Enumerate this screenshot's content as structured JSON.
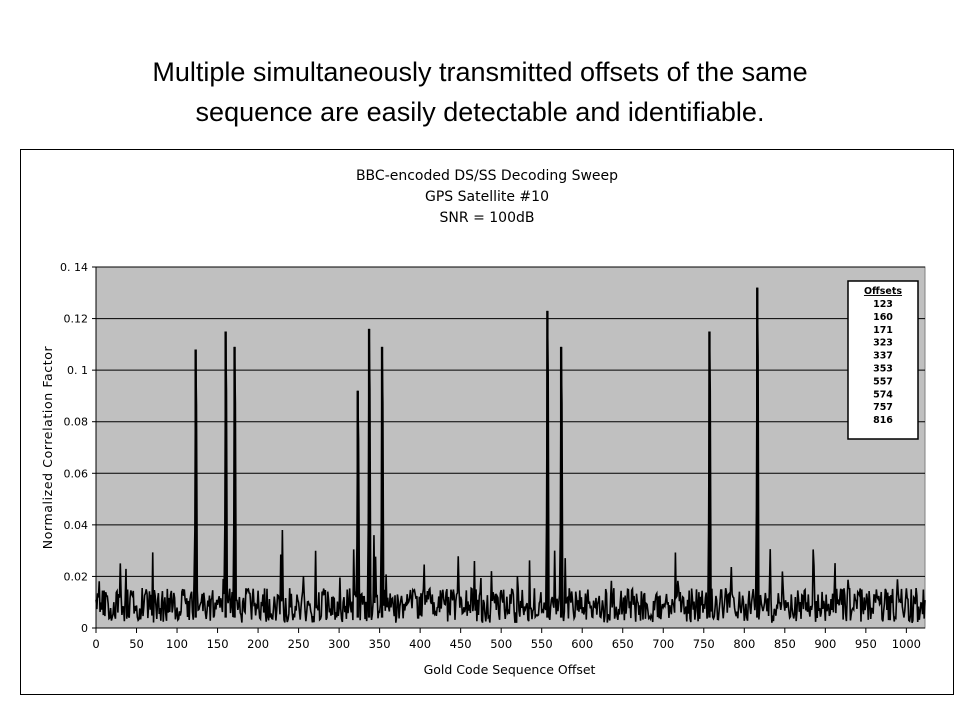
{
  "slide": {
    "title_line1": "Multiple simultaneously transmitted offsets of the same",
    "title_line2": "sequence are easily detectable and identifiable."
  },
  "chart_data": {
    "type": "line",
    "title": [
      "BBC-encoded DS/SS Decoding Sweep",
      "GPS Satellite #10",
      "SNR = 100dB"
    ],
    "xlabel": "Gold Code Sequence Offset",
    "ylabel": "Normalized Correlation Factor",
    "xlim": [
      0,
      1023
    ],
    "ylim": [
      0,
      0.14
    ],
    "x_ticks": [
      0,
      50,
      100,
      150,
      200,
      250,
      300,
      350,
      400,
      450,
      500,
      550,
      600,
      650,
      700,
      750,
      800,
      850,
      900,
      950,
      1000
    ],
    "y_ticks": [
      0,
      0.02,
      0.04,
      0.06,
      0.08,
      0.1,
      0.12,
      0.14
    ],
    "y_tick_labels": [
      "0",
      "0.02",
      "0.04",
      "0.06",
      "0.08",
      "0. 1",
      "0.12",
      "0. 14"
    ],
    "grid": "horizontal",
    "plot_background": "#c0c0c0",
    "line_color": "#000000",
    "legend": {
      "title": "Offsets",
      "entries": [
        "123",
        "160",
        "171",
        "323",
        "337",
        "353",
        "557",
        "574",
        "757",
        "816"
      ],
      "placement": "top-right"
    },
    "peaks": [
      {
        "x": 123,
        "y": 0.108
      },
      {
        "x": 160,
        "y": 0.115
      },
      {
        "x": 171,
        "y": 0.109
      },
      {
        "x": 323,
        "y": 0.092
      },
      {
        "x": 337,
        "y": 0.116
      },
      {
        "x": 353,
        "y": 0.109
      },
      {
        "x": 557,
        "y": 0.123
      },
      {
        "x": 574,
        "y": 0.109
      },
      {
        "x": 757,
        "y": 0.115
      },
      {
        "x": 816,
        "y": 0.132
      }
    ],
    "noise_floor": {
      "typical_range": [
        0.002,
        0.02
      ],
      "max_sidelobe": 0.038
    }
  }
}
